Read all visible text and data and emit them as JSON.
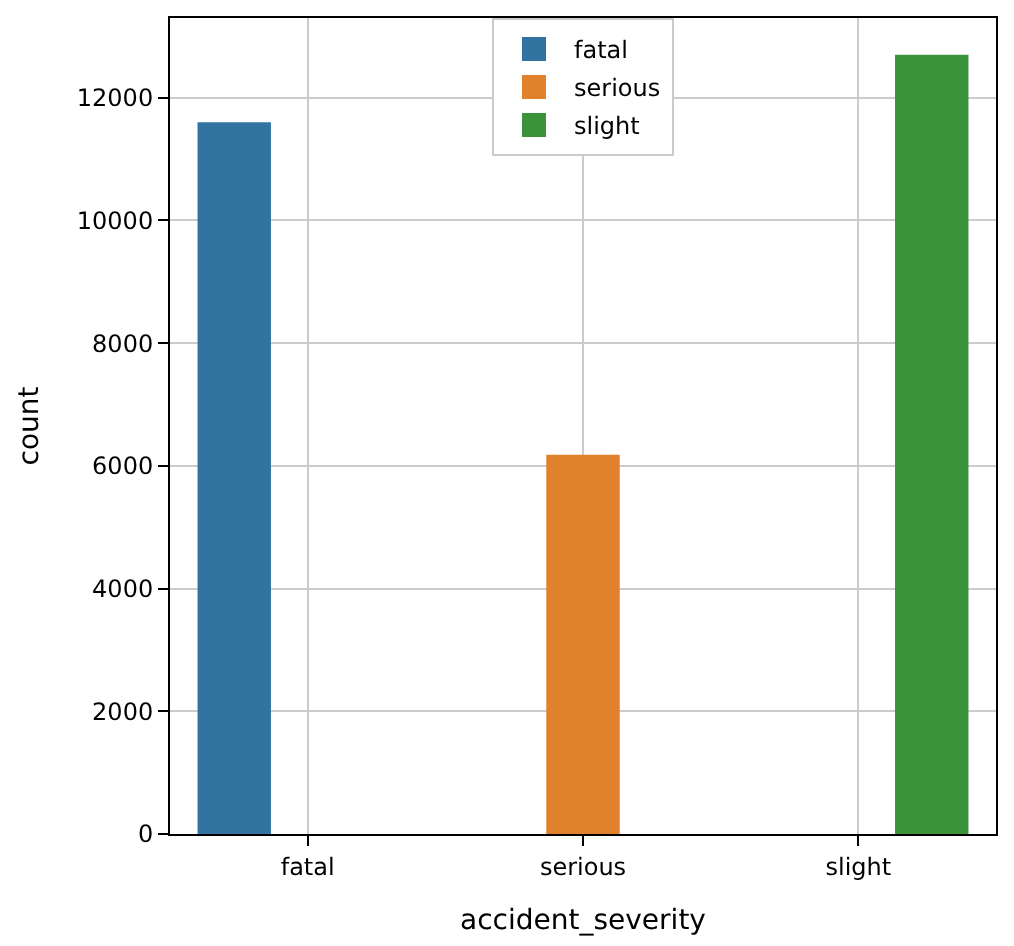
{
  "chart_data": {
    "type": "bar",
    "xlabel": "accident_severity",
    "ylabel": "count",
    "categories": [
      "fatal",
      "serious",
      "slight"
    ],
    "series": [
      {
        "name": "fatal",
        "color": "#3274a1",
        "values": [
          11600,
          null,
          null
        ]
      },
      {
        "name": "serious",
        "color": "#e1812c",
        "values": [
          null,
          6180,
          null
        ]
      },
      {
        "name": "slight",
        "color": "#3a923a",
        "values": [
          null,
          null,
          12700
        ]
      }
    ],
    "ylim": [
      0,
      13300
    ],
    "yticks": [
      0,
      2000,
      4000,
      6000,
      8000,
      10000,
      12000
    ],
    "grid": true,
    "legend": "top"
  }
}
